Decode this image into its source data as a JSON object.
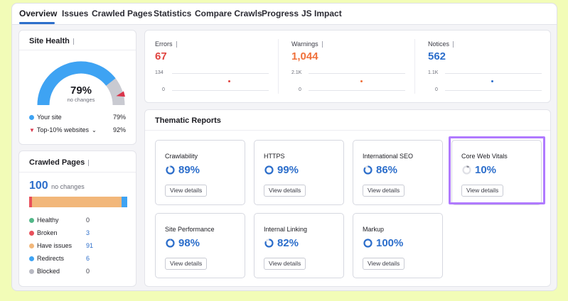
{
  "tabs": [
    "Overview",
    "Issues",
    "Crawled Pages",
    "Statistics",
    "Compare Crawls",
    "Progress",
    "JS Impact"
  ],
  "site_health": {
    "title": "Site Health",
    "value": "79%",
    "change": "no changes",
    "legend": [
      {
        "label": "Your site",
        "value": "79%",
        "color": "#3ea3f3"
      },
      {
        "label": "Top-10% websites",
        "value": "92%",
        "color": "#d9344a"
      }
    ]
  },
  "crawled_pages": {
    "title": "Crawled Pages",
    "total": "100",
    "change": "no changes",
    "rows": [
      {
        "label": "Healthy",
        "value": "0",
        "color": "#52b788"
      },
      {
        "label": "Broken",
        "value": "3",
        "color": "#e8505b"
      },
      {
        "label": "Have issues",
        "value": "91",
        "color": "#f2b77a"
      },
      {
        "label": "Redirects",
        "value": "6",
        "color": "#3ea3f3"
      },
      {
        "label": "Blocked",
        "value": "0",
        "color": "#b8b9c2"
      }
    ]
  },
  "metrics": [
    {
      "label": "Errors",
      "value": "67",
      "axis_top": "134",
      "axis_bottom": "0",
      "color": "#e0433f"
    },
    {
      "label": "Warnings",
      "value": "1,044",
      "axis_top": "2.1K",
      "axis_bottom": "0",
      "color": "#f0703a"
    },
    {
      "label": "Notices",
      "value": "562",
      "axis_top": "1.1K",
      "axis_bottom": "0",
      "color": "#2c6ecb"
    }
  ],
  "thematic": {
    "title": "Thematic Reports",
    "button_label": "View details",
    "reports": [
      {
        "name": "Crawlability",
        "value": "89%",
        "percent": 89
      },
      {
        "name": "HTTPS",
        "value": "99%",
        "percent": 99
      },
      {
        "name": "International SEO",
        "value": "86%",
        "percent": 86
      },
      {
        "name": "Core Web Vitals",
        "value": "10%",
        "percent": 10
      },
      {
        "name": "Site Performance",
        "value": "98%",
        "percent": 98
      },
      {
        "name": "Internal Linking",
        "value": "82%",
        "percent": 82
      },
      {
        "name": "Markup",
        "value": "100%",
        "percent": 100
      }
    ]
  }
}
